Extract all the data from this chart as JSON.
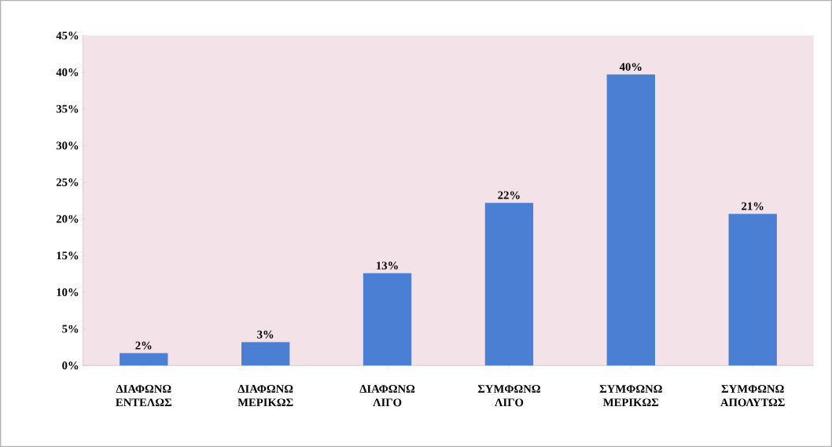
{
  "chart_data": {
    "type": "bar",
    "categories": [
      "ΔΙΑΦΩΝΩ ΕΝΤΕΛΩΣ",
      "ΔΙΑΦΩΝΩ ΜΕΡΙΚΩΣ",
      "ΔΙΑΦΩΝΩ ΛΙΓΟ",
      "ΣΥΜΦΩΝΩ ΛΙΓΟ",
      "ΣΥΜΦΩΝΩ ΜΕΡΙΚΩΣ",
      "ΣΥΜΦΩΝΩ ΑΠΟΛΥΤΩΣ"
    ],
    "values": [
      1.7,
      3.2,
      12.6,
      22.2,
      39.7,
      20.7
    ],
    "value_labels": [
      "2%",
      "3%",
      "13%",
      "22%",
      "40%",
      "21%"
    ],
    "color": "#4a7fd4",
    "ylim": [
      0,
      45
    ],
    "yticks": [
      {
        "value": 0,
        "label": "0%"
      },
      {
        "value": 5,
        "label": "5%"
      },
      {
        "value": 10,
        "label": "10%"
      },
      {
        "value": 15,
        "label": "15%"
      },
      {
        "value": 20,
        "label": "20%"
      },
      {
        "value": 25,
        "label": "25%"
      },
      {
        "value": 30,
        "label": "30%"
      },
      {
        "value": 35,
        "label": "35%"
      },
      {
        "value": 40,
        "label": "40%"
      },
      {
        "value": 45,
        "label": "45%"
      }
    ]
  }
}
